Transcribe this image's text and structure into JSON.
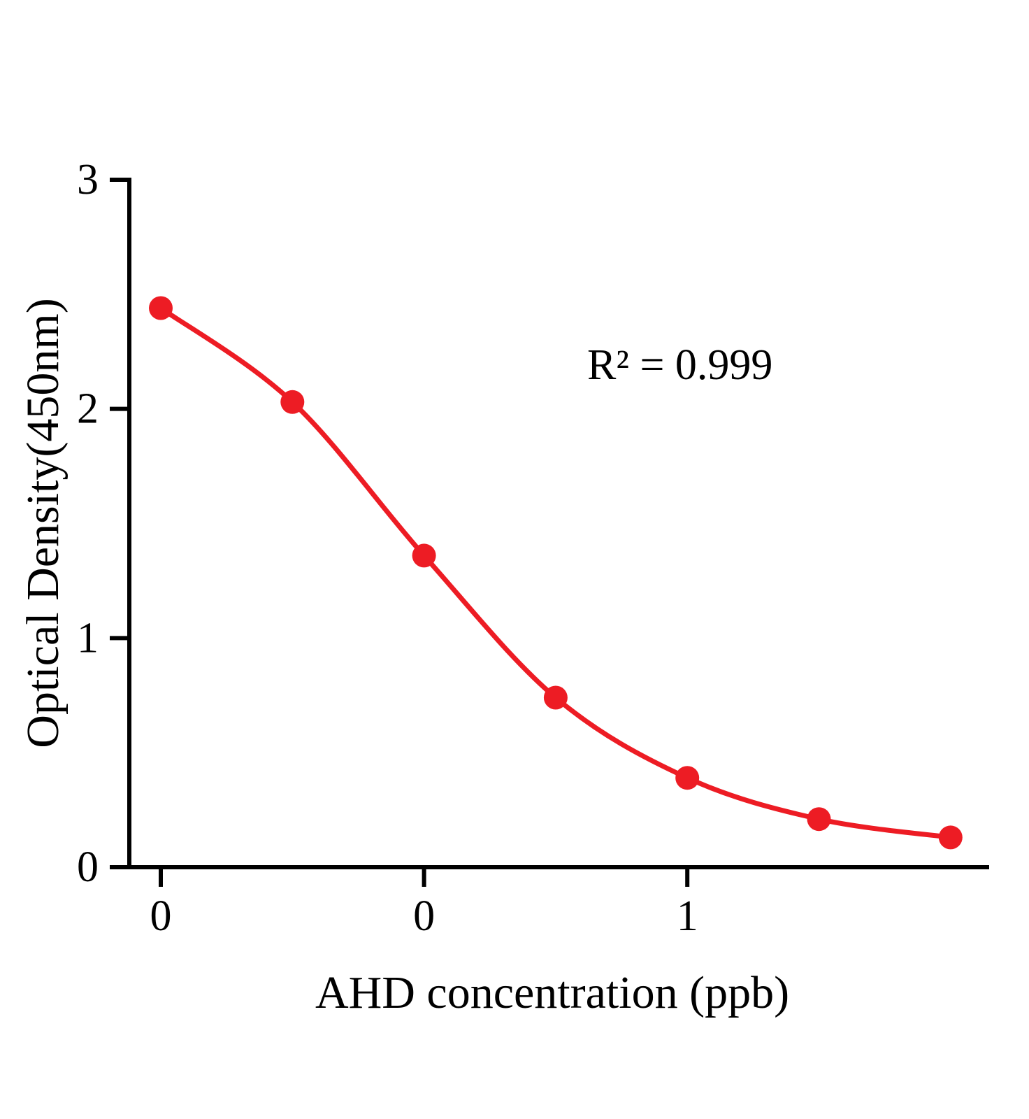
{
  "chart_data": {
    "type": "line",
    "title": "",
    "xlabel": "AHD concentration (ppb)",
    "ylabel": "Optical Density(450nm)",
    "annotation": "R² = 0.999",
    "x_index": [
      0,
      1,
      2,
      3,
      4,
      5,
      6
    ],
    "values": [
      2.44,
      2.03,
      1.36,
      0.74,
      0.39,
      0.21,
      0.13
    ],
    "ylim": [
      0,
      3
    ],
    "y_ticks": [
      {
        "value": 0,
        "label": "0"
      },
      {
        "value": 1,
        "label": "1"
      },
      {
        "value": 2,
        "label": "2"
      },
      {
        "value": 3,
        "label": "3"
      }
    ],
    "x_ticks": [
      {
        "index": 0,
        "label": "0"
      },
      {
        "index": 2,
        "label": "0"
      },
      {
        "index": 4,
        "label": "1"
      }
    ],
    "line_color": "#ed1c24",
    "marker_color": "#ed1c24",
    "axis_color": "#000000",
    "grid": false,
    "legend_position": "none"
  }
}
